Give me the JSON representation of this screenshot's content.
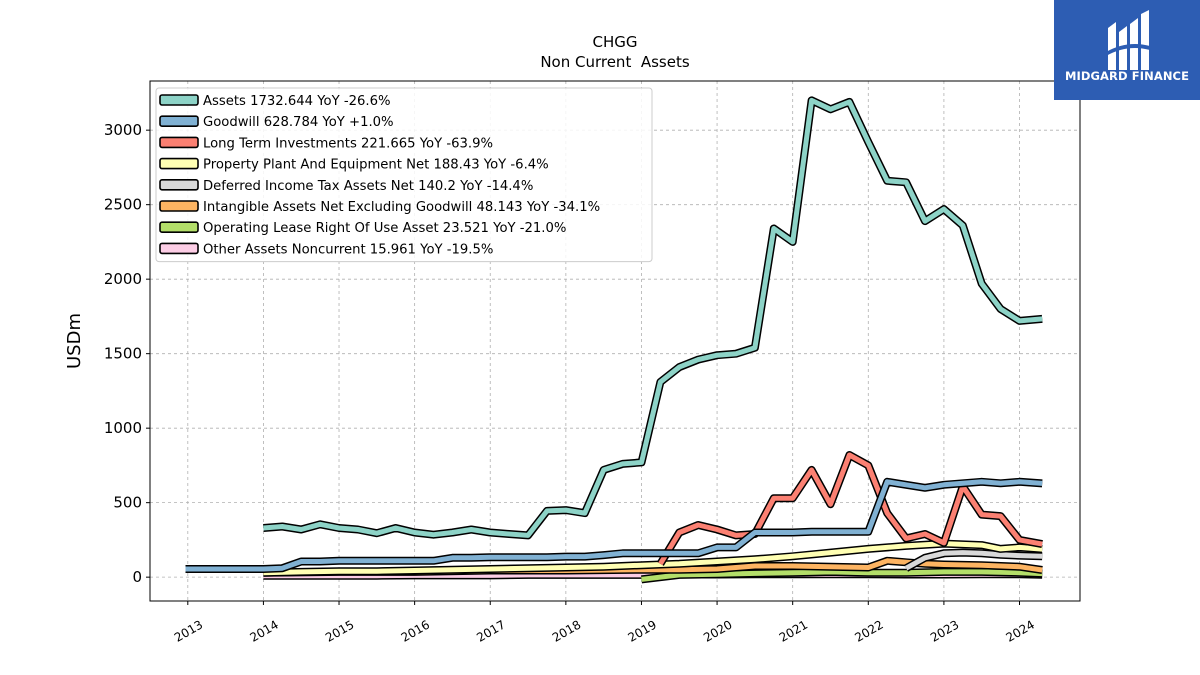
{
  "brand": {
    "name": "MIDGARD FINANCE",
    "color": "#2d5db3",
    "icon": "midgard-finance-logo-icon"
  },
  "chart_data": {
    "type": "line",
    "title": "CHGG",
    "subtitle": "Non Current  Assets",
    "ylabel": "USDm",
    "xlabel": "",
    "xlim": [
      2012.5,
      2024.8
    ],
    "ylim": [
      -160,
      3330
    ],
    "yticks": [
      0,
      500,
      1000,
      1500,
      2000,
      2500,
      3000
    ],
    "xticks": [
      2013,
      2014,
      2015,
      2016,
      2017,
      2018,
      2019,
      2020,
      2021,
      2022,
      2023,
      2024
    ],
    "grid": true,
    "legend_position": "top-left",
    "series": [
      {
        "name": "Assets",
        "legend": "Assets  1732.644 YoY -26.6%",
        "color": "#8dd3c7",
        "x": [
          2014.0,
          2014.25,
          2014.5,
          2014.75,
          2015.0,
          2015.25,
          2015.5,
          2015.75,
          2016.0,
          2016.25,
          2016.5,
          2016.75,
          2017.0,
          2017.25,
          2017.5,
          2017.75,
          2018.0,
          2018.25,
          2018.5,
          2018.75,
          2019.0,
          2019.25,
          2019.5,
          2019.75,
          2020.0,
          2020.25,
          2020.5,
          2020.75,
          2021.0,
          2021.25,
          2021.5,
          2021.75,
          2022.0,
          2022.25,
          2022.5,
          2022.75,
          2023.0,
          2023.25,
          2023.5,
          2023.75,
          2024.0,
          2024.3
        ],
        "y": [
          330,
          340,
          320,
          355,
          330,
          320,
          295,
          330,
          300,
          285,
          300,
          320,
          300,
          290,
          280,
          445,
          450,
          430,
          720,
          760,
          770,
          1310,
          1410,
          1460,
          1490,
          1500,
          1540,
          2340,
          2250,
          3200,
          3140,
          3190,
          2920,
          2660,
          2650,
          2390,
          2470,
          2360,
          1970,
          1800,
          1720,
          1733
        ]
      },
      {
        "name": "Goodwill",
        "legend": "Goodwill  628.784 YoY +1.0%",
        "color": "#80b1d3",
        "x": [
          2012.97,
          2014.0,
          2014.25,
          2014.5,
          2014.75,
          2015.0,
          2015.25,
          2015.5,
          2015.75,
          2016.0,
          2016.25,
          2016.5,
          2016.75,
          2017.0,
          2017.25,
          2017.5,
          2017.75,
          2018.0,
          2018.25,
          2018.5,
          2018.75,
          2019.0,
          2019.25,
          2019.5,
          2019.75,
          2020.0,
          2020.25,
          2020.5,
          2020.75,
          2021.0,
          2021.25,
          2021.5,
          2021.75,
          2022.0,
          2022.25,
          2022.5,
          2022.75,
          2023.0,
          2023.25,
          2023.5,
          2023.75,
          2024.0,
          2024.3
        ],
        "y": [
          55,
          55,
          60,
          105,
          105,
          110,
          110,
          110,
          110,
          110,
          110,
          130,
          130,
          133,
          133,
          133,
          133,
          138,
          138,
          148,
          160,
          160,
          160,
          160,
          160,
          200,
          200,
          300,
          300,
          300,
          305,
          305,
          305,
          305,
          640,
          620,
          600,
          620,
          630,
          640,
          630,
          640,
          629
        ]
      },
      {
        "name": "Long Term Investments",
        "legend": "Long Term Investments  221.665 YoY -63.9%",
        "color": "#fb8072",
        "x": [
          2019.25,
          2019.5,
          2019.75,
          2020.0,
          2020.25,
          2020.5,
          2020.75,
          2021.0,
          2021.25,
          2021.5,
          2021.75,
          2022.0,
          2022.25,
          2022.5,
          2022.75,
          2023.0,
          2023.25,
          2023.5,
          2023.75,
          2024.0,
          2024.3
        ],
        "y": [
          90,
          300,
          350,
          320,
          280,
          290,
          530,
          530,
          720,
          490,
          820,
          750,
          430,
          260,
          290,
          230,
          610,
          420,
          410,
          250,
          222
        ]
      },
      {
        "name": "Property Plant And Equipment Net",
        "legend": "Property Plant And Equipment Net  188.43 YoY -6.4%",
        "color": "#ffffb3",
        "x": [
          2014.0,
          2014.5,
          2015.0,
          2015.5,
          2016.0,
          2016.5,
          2017.0,
          2017.5,
          2018.0,
          2018.5,
          2019.0,
          2019.5,
          2020.0,
          2020.5,
          2021.0,
          2021.5,
          2022.0,
          2022.5,
          2023.0,
          2023.5,
          2023.75,
          2024.0,
          2024.3
        ],
        "y": [
          30,
          35,
          40,
          40,
          45,
          50,
          55,
          60,
          65,
          70,
          80,
          90,
          105,
          120,
          140,
          165,
          190,
          210,
          225,
          215,
          190,
          200,
          188
        ]
      },
      {
        "name": "Deferred Income Tax Assets Net",
        "legend": "Deferred Income Tax Assets Net  140.2 YoY -14.4%",
        "color": "#d9d9d9",
        "x": [
          2022.5,
          2022.75,
          2023.0,
          2023.25,
          2023.5,
          2023.75,
          2024.0,
          2024.3
        ],
        "y": [
          60,
          130,
          160,
          165,
          160,
          150,
          145,
          140
        ]
      },
      {
        "name": "Intangible Assets Net Excluding Goodwill",
        "legend": "Intangible Assets Net Excluding Goodwill  48.143 YoY -34.1%",
        "color": "#fdb462",
        "x": [
          2014.0,
          2015.0,
          2016.0,
          2017.0,
          2018.0,
          2019.0,
          2019.5,
          2020.0,
          2020.5,
          2021.0,
          2021.5,
          2022.0,
          2022.25,
          2022.5,
          2022.75,
          2023.0,
          2023.5,
          2024.0,
          2024.3
        ],
        "y": [
          30,
          35,
          35,
          45,
          45,
          50,
          50,
          55,
          75,
          75,
          70,
          65,
          110,
          100,
          90,
          85,
          80,
          70,
          48
        ]
      },
      {
        "name": "Operating Lease Right Of Use Asset",
        "legend": "Operating Lease Right Of Use Asset  23.521 YoY -21.0%",
        "color": "#b3de69",
        "x": [
          2019.0,
          2019.5,
          2020.0,
          2020.5,
          2021.0,
          2021.5,
          2022.0,
          2022.5,
          2023.0,
          2023.5,
          2024.0,
          2024.3
        ],
        "y": [
          -15,
          15,
          20,
          25,
          30,
          35,
          30,
          30,
          35,
          35,
          30,
          24
        ]
      },
      {
        "name": "Other Assets Noncurrent",
        "legend": "Other Assets Noncurrent  15.961 YoY -19.5%",
        "color": "#fccde5",
        "x": [
          2014.0,
          2014.5,
          2015.0,
          2015.5,
          2016.0,
          2016.5,
          2017.0,
          2017.5,
          2018.0,
          2018.5,
          2019.0,
          2019.5,
          2020.0,
          2020.5,
          2021.0,
          2021.5,
          2022.0,
          2022.5,
          2023.0,
          2023.5,
          2024.0,
          2024.3
        ],
        "y": [
          10,
          10,
          10,
          10,
          12,
          12,
          12,
          15,
          15,
          15,
          15,
          18,
          18,
          20,
          20,
          20,
          20,
          18,
          18,
          20,
          20,
          16
        ]
      }
    ]
  }
}
